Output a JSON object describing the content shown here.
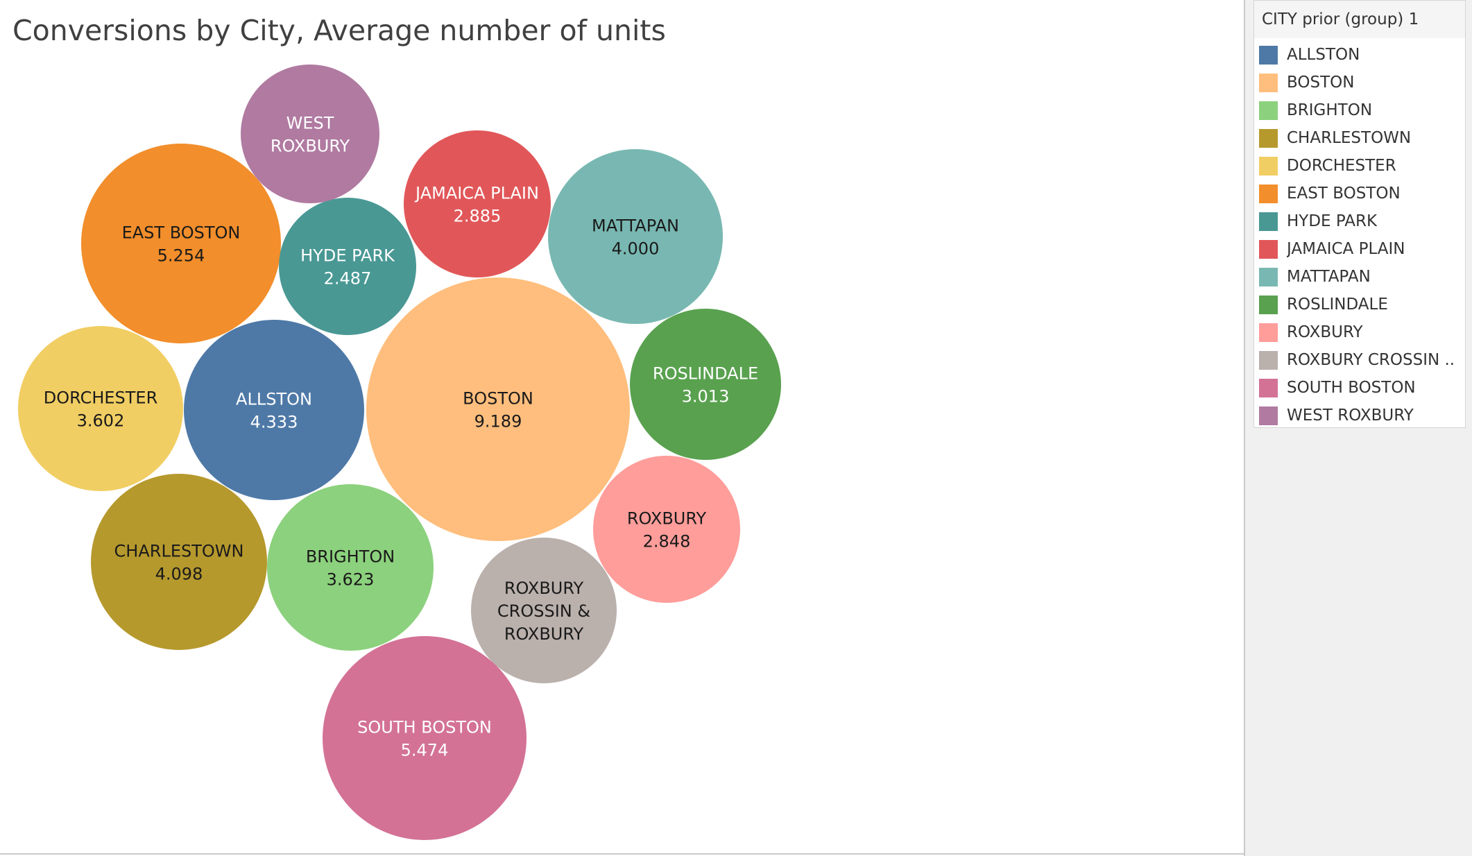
{
  "title": "Conversions by City, Average number of units",
  "legend": {
    "title": "CITY prior (group) 1",
    "items": [
      {
        "label": "ALLSTON",
        "color": "#4e79a7"
      },
      {
        "label": "BOSTON",
        "color": "#ffbe7d"
      },
      {
        "label": "BRIGHTON",
        "color": "#8cd17d"
      },
      {
        "label": "CHARLESTOWN",
        "color": "#b6992d"
      },
      {
        "label": "DORCHESTER",
        "color": "#f1ce63"
      },
      {
        "label": "EAST BOSTON",
        "color": "#f28e2b"
      },
      {
        "label": "HYDE PARK",
        "color": "#499894"
      },
      {
        "label": "JAMAICA PLAIN",
        "color": "#e15759"
      },
      {
        "label": "MATTAPAN",
        "color": "#79b8b2"
      },
      {
        "label": "ROSLINDALE",
        "color": "#59a14f"
      },
      {
        "label": "ROXBURY",
        "color": "#ff9d9a"
      },
      {
        "label": "ROXBURY CROSSIN ..",
        "color": "#bab0ac"
      },
      {
        "label": "SOUTH BOSTON",
        "color": "#d37295"
      },
      {
        "label": "WEST ROXBURY",
        "color": "#b07aa1"
      }
    ]
  },
  "chart_data": {
    "type": "bubble",
    "title": "Conversions by City, Average number of units",
    "size_measure": "Average number of units",
    "color_dimension": "CITY prior (group) 1",
    "series": [
      {
        "name": "ALLSTON",
        "value": 4.333,
        "label_lines": [
          "ALLSTON",
          "4.333"
        ],
        "text_color": "#ffffff"
      },
      {
        "name": "BOSTON",
        "value": 9.189,
        "label_lines": [
          "BOSTON",
          "9.189"
        ],
        "text_color": "#1a1a1a"
      },
      {
        "name": "BRIGHTON",
        "value": 3.623,
        "label_lines": [
          "BRIGHTON",
          "3.623"
        ],
        "text_color": "#1a1a1a"
      },
      {
        "name": "CHARLESTOWN",
        "value": 4.098,
        "label_lines": [
          "CHARLESTOWN",
          "4.098"
        ],
        "text_color": "#1a1a1a"
      },
      {
        "name": "DORCHESTER",
        "value": 3.602,
        "label_lines": [
          "DORCHESTER",
          "3.602"
        ],
        "text_color": "#1a1a1a"
      },
      {
        "name": "EAST BOSTON",
        "value": 5.254,
        "label_lines": [
          "EAST BOSTON",
          "5.254"
        ],
        "text_color": "#1a1a1a"
      },
      {
        "name": "HYDE PARK",
        "value": 2.487,
        "label_lines": [
          "HYDE PARK",
          "2.487"
        ],
        "text_color": "#ffffff"
      },
      {
        "name": "JAMAICA PLAIN",
        "value": 2.885,
        "label_lines": [
          "JAMAICA PLAIN",
          "2.885"
        ],
        "text_color": "#ffffff"
      },
      {
        "name": "MATTAPAN",
        "value": 4.0,
        "label_lines": [
          "MATTAPAN",
          "4.000"
        ],
        "text_color": "#1a1a1a"
      },
      {
        "name": "ROSLINDALE",
        "value": 3.013,
        "label_lines": [
          "ROSLINDALE",
          "3.013"
        ],
        "text_color": "#ffffff"
      },
      {
        "name": "ROXBURY",
        "value": 2.848,
        "label_lines": [
          "ROXBURY",
          "2.848"
        ],
        "text_color": "#1a1a1a"
      },
      {
        "name": "ROXBURY CROSSIN & ROXBURY",
        "value": null,
        "label_lines": [
          "ROXBURY",
          "CROSSIN &",
          "ROXBURY"
        ],
        "text_color": "#1a1a1a"
      },
      {
        "name": "SOUTH BOSTON",
        "value": 5.474,
        "label_lines": [
          "SOUTH BOSTON",
          "5.474"
        ],
        "text_color": "#ffffff"
      },
      {
        "name": "WEST ROXBURY",
        "value": null,
        "label_lines": [
          "WEST",
          "ROXBURY"
        ],
        "text_color": "#ffffff"
      }
    ]
  }
}
